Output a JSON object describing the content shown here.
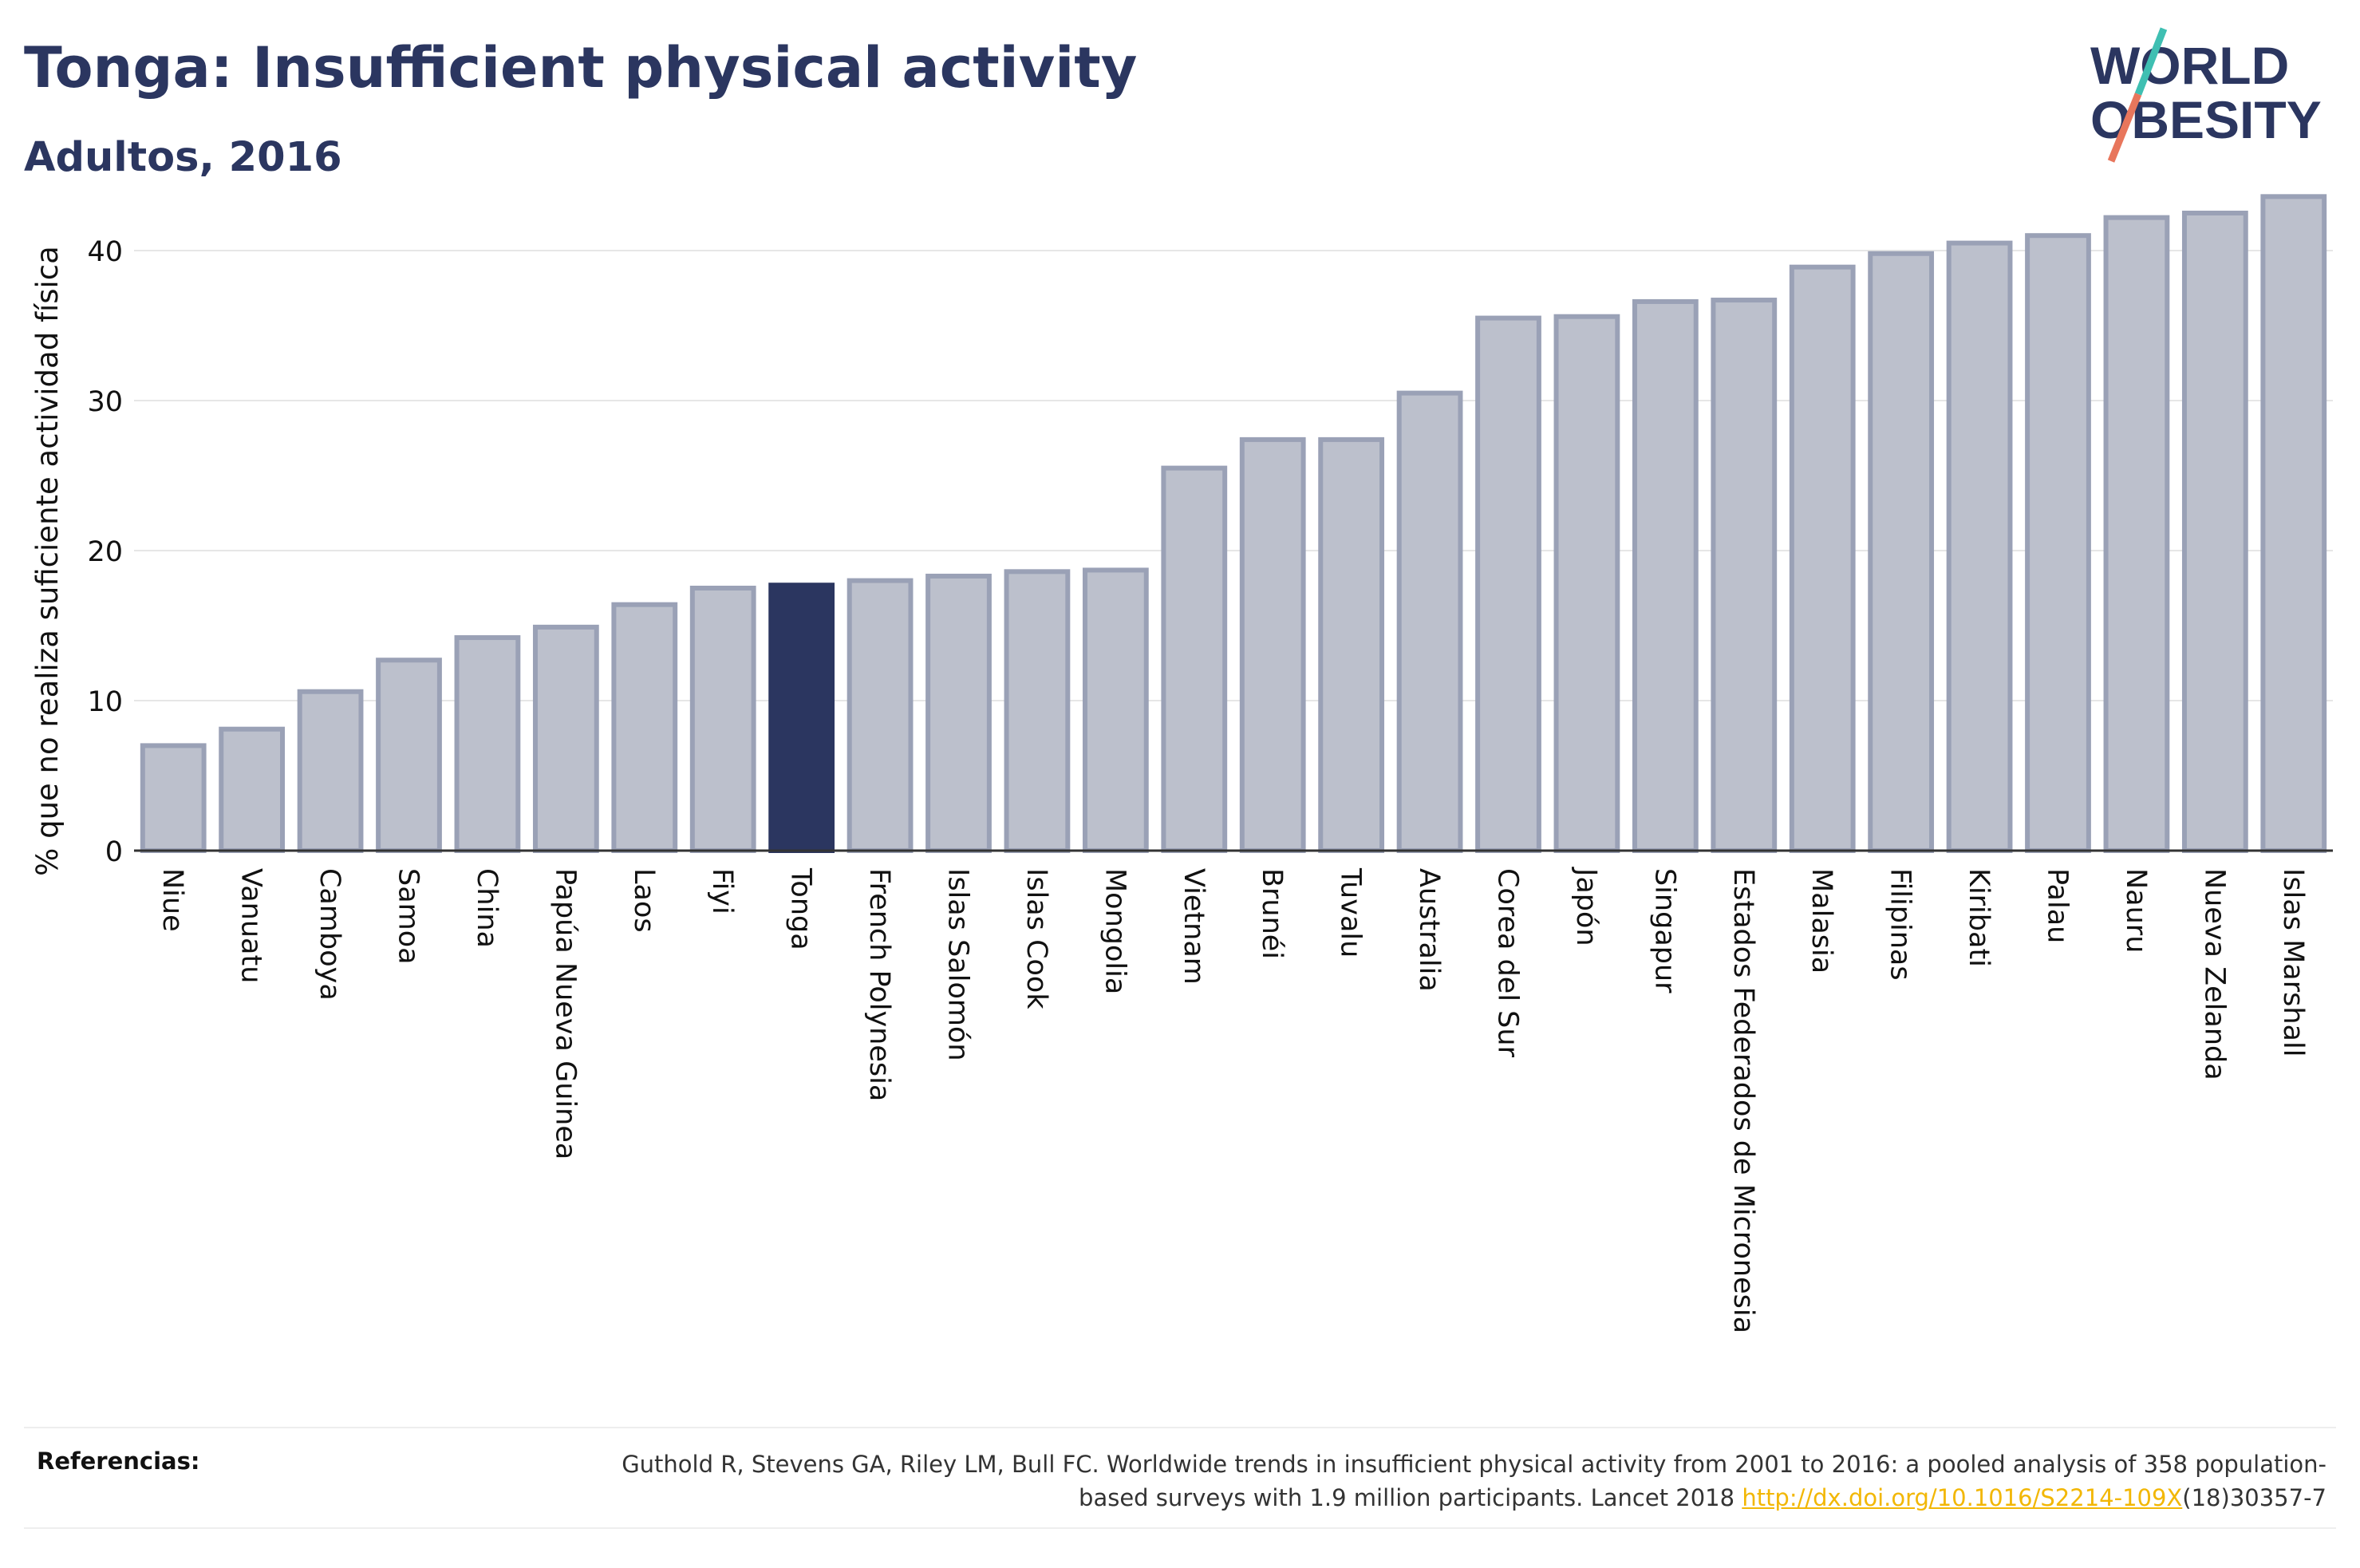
{
  "header": {
    "title": "Tonga: Insufficient physical activity",
    "subtitle": "Adultos, 2016"
  },
  "logo": {
    "line1": "WORLD",
    "line2": "OBESITY",
    "slash_colors": [
      "#3fbfb2",
      "#e8765c"
    ]
  },
  "colors": {
    "highlight": "#2b3660",
    "bar": "#bcc0cc",
    "bar_edge": "#9aa1b6",
    "text": "#2b3660",
    "link": "#f2b705"
  },
  "chart_data": {
    "type": "bar",
    "categories": [
      "Niue",
      "Vanuatu",
      "Camboya",
      "Samoa",
      "China",
      "Papúa Nueva Guinea",
      "Laos",
      "Fiyi",
      "Tonga",
      "French Polynesia",
      "Islas Salomón",
      "Islas Cook",
      "Mongolia",
      "Vietnam",
      "Brunéi",
      "Tuvalu",
      "Australia",
      "Corea del Sur",
      "Japón",
      "Singapur",
      "Estados Federados de Micronesia",
      "Malasia",
      "Filipinas",
      "Kiribati",
      "Palau",
      "Nauru",
      "Nueva Zelanda",
      "Islas Marshall"
    ],
    "values": [
      7.0,
      8.1,
      10.6,
      12.7,
      14.2,
      14.9,
      16.4,
      17.5,
      17.7,
      18.0,
      18.3,
      18.6,
      18.7,
      25.5,
      27.4,
      27.4,
      30.5,
      35.5,
      35.6,
      36.6,
      36.7,
      38.9,
      39.8,
      40.5,
      41.0,
      42.2,
      42.5,
      43.6
    ],
    "highlight": "Tonga",
    "ylabel": "% que no realiza suficiente actividad física",
    "xlabel": "",
    "yticks": [
      0,
      10,
      20,
      30,
      40
    ],
    "ylim": [
      0,
      45
    ],
    "grid": true
  },
  "footer": {
    "label": "Referencias:",
    "text_before": "Guthold R, Stevens GA, Riley LM, Bull FC. Worldwide trends in insufficient physical activity from 2001 to 2016: a pooled analysis of 358 population-based surveys with 1.9 million participants. Lancet 2018 ",
    "link": "http://dx.doi.org/10.1016/S2214-109X",
    "text_after": "(18)30357-7"
  }
}
